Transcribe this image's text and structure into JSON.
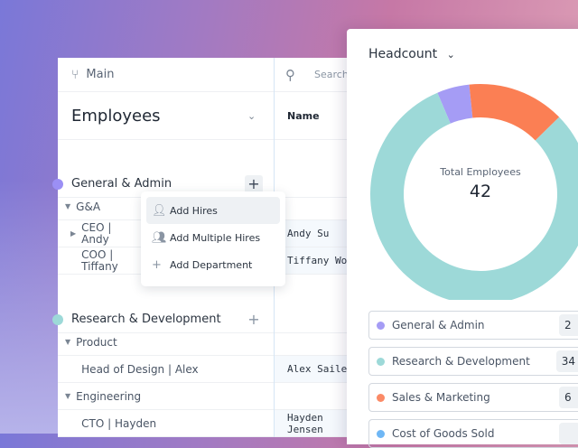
{
  "header": {
    "branch": "Main",
    "search_placeholder": "Search",
    "column_name": "Name"
  },
  "view": {
    "title": "Employees"
  },
  "rows": [
    {
      "type": "dept",
      "label": "General & Admin",
      "color": "#9b8ff5"
    },
    {
      "type": "group",
      "label": "G&A"
    },
    {
      "type": "role",
      "label": "CEO | Andy",
      "name": "Andy Su",
      "expandable": true
    },
    {
      "type": "role",
      "label": "COO | Tiffany",
      "name": "Tiffany Wong"
    },
    {
      "type": "blank"
    },
    {
      "type": "dept",
      "label": "Research & Development",
      "color": "#9dd9d8"
    },
    {
      "type": "group",
      "label": "Product"
    },
    {
      "type": "role",
      "label": "Head of Design | Alex",
      "name": "Alex Sailer"
    },
    {
      "type": "group",
      "label": "Engineering"
    },
    {
      "type": "role",
      "label": "CTO | Hayden",
      "name": "Hayden Jensen"
    }
  ],
  "menu": [
    {
      "label": "Add Hires",
      "icon": "user-icon"
    },
    {
      "label": "Add Multiple Hires",
      "icon": "users-icon"
    },
    {
      "label": "Add Department",
      "icon": "plus-icon"
    }
  ],
  "panel": {
    "metric": "Headcount",
    "total_label": "Total Employees",
    "total": "42"
  },
  "chart_data": {
    "type": "pie",
    "donut": true,
    "slices": [
      {
        "name": "General & Admin",
        "value": 2,
        "color": "#a59cf5"
      },
      {
        "name": "Sales & Marketing",
        "value": 6,
        "color": "#fb7f54"
      },
      {
        "name": "Research & Development",
        "value": 34,
        "color": "#9dd9d8"
      }
    ]
  },
  "legend": [
    {
      "label": "General & Admin",
      "count": "2",
      "color": "#a59cf5"
    },
    {
      "label": "Research & Development",
      "count": "34",
      "color": "#9dd9d8"
    },
    {
      "label": "Sales & Marketing",
      "count": "6",
      "color": "#fb8a66"
    },
    {
      "label": "Cost of Goods Sold",
      "count": "",
      "color": "#6fb7f5"
    }
  ]
}
